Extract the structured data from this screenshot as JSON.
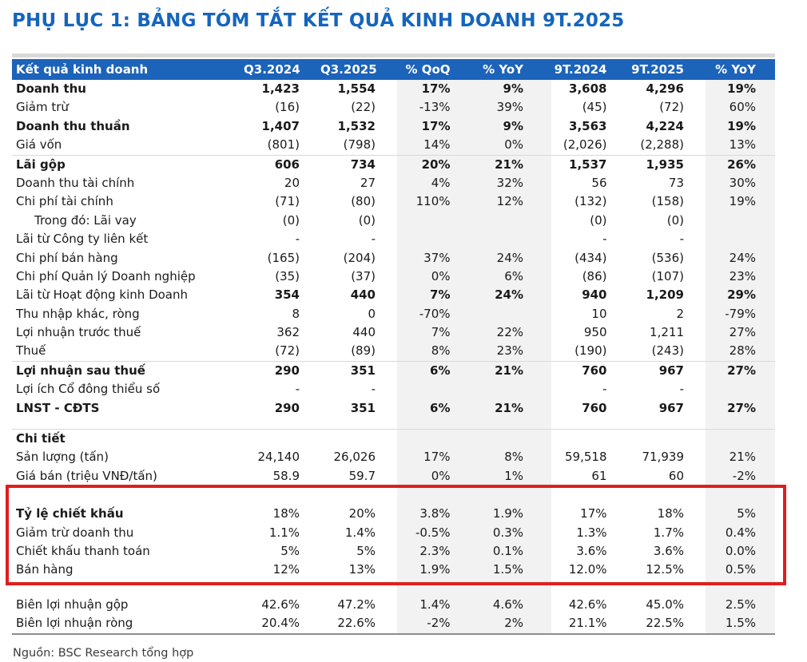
{
  "title": "PHỤ LỤC 1: BẢNG TÓM TẮT KẾT QUẢ KINH DOANH 9T.2025",
  "source_note": "Nguồn: BSC Research tổng hợp",
  "colors": {
    "title": "#1565BD",
    "header_bg": "#1C63BA",
    "header_text": "#FFFFFF",
    "band": "#F2F2F2",
    "highlight_border": "#E01E1E",
    "rule_light": "#D9D9D9",
    "rule_dark": "#8C8C8C",
    "text": "#1A1A1A"
  },
  "table": {
    "header": [
      "Kết quả kinh doanh",
      "Q3.2024",
      "Q3.2025",
      "% QoQ",
      "% YoY",
      "9T.2024",
      "9T.2025",
      "% YoY"
    ],
    "rows": [
      {
        "label": "Doanh thu",
        "values": [
          "1,423",
          "1,554",
          "17%",
          "9%",
          "3,608",
          "4,296",
          "19%"
        ],
        "bold_label": true,
        "bold_values": true
      },
      {
        "label": "Giảm trừ",
        "values": [
          "(16)",
          "(22)",
          "-13%",
          "39%",
          "(45)",
          "(72)",
          "60%"
        ]
      },
      {
        "label": "Doanh thu thuần",
        "values": [
          "1,407",
          "1,532",
          "17%",
          "9%",
          "3,563",
          "4,224",
          "19%"
        ],
        "bold_label": true,
        "bold_values": true
      },
      {
        "label": "Giá vốn",
        "values": [
          "(801)",
          "(798)",
          "14%",
          "0%",
          "(2,026)",
          "(2,288)",
          "13%"
        ],
        "rule": "light"
      },
      {
        "label": "Lãi gộp",
        "values": [
          "606",
          "734",
          "20%",
          "21%",
          "1,537",
          "1,935",
          "26%"
        ],
        "bold_label": true,
        "bold_values": true
      },
      {
        "label": "Doanh thu tài chính",
        "values": [
          "20",
          "27",
          "4%",
          "32%",
          "56",
          "73",
          "30%"
        ]
      },
      {
        "label": "Chi phí tài chính",
        "values": [
          "(71)",
          "(80)",
          "110%",
          "12%",
          "(132)",
          "(158)",
          "19%"
        ]
      },
      {
        "label": "Trong đó: Lãi vay",
        "values": [
          "(0)",
          "(0)",
          "",
          "",
          "(0)",
          "(0)",
          ""
        ],
        "indent": true
      },
      {
        "label": "Lãi từ Công ty liên kết",
        "values": [
          "-",
          "-",
          "",
          "",
          "-",
          "-",
          ""
        ]
      },
      {
        "label": "Chi phí bán hàng",
        "values": [
          "(165)",
          "(204)",
          "37%",
          "24%",
          "(434)",
          "(536)",
          "24%"
        ]
      },
      {
        "label": "Chi phí Quản lý Doanh nghiệp",
        "values": [
          "(35)",
          "(37)",
          "0%",
          "6%",
          "(86)",
          "(107)",
          "23%"
        ]
      },
      {
        "label": "Lãi từ Hoạt động kinh Doanh",
        "values": [
          "354",
          "440",
          "7%",
          "24%",
          "940",
          "1,209",
          "29%"
        ],
        "bold_values": true
      },
      {
        "label": "Thu nhập khác, ròng",
        "values": [
          "8",
          "0",
          "-70%",
          "",
          "10",
          "2",
          "-79%"
        ]
      },
      {
        "label": "Lợi nhuận trước thuế",
        "values": [
          "362",
          "440",
          "7%",
          "22%",
          "950",
          "1,211",
          "27%"
        ]
      },
      {
        "label": "Thuế",
        "values": [
          "(72)",
          "(89)",
          "8%",
          "23%",
          "(190)",
          "(243)",
          "28%"
        ],
        "rule": "light"
      },
      {
        "label": "Lợi nhuận sau thuế",
        "values": [
          "290",
          "351",
          "6%",
          "21%",
          "760",
          "967",
          "27%"
        ],
        "bold_label": true,
        "bold_values": true
      },
      {
        "label": "Lợi ích Cổ đông thiểu số",
        "values": [
          "-",
          "-",
          "",
          "",
          "-",
          "-",
          ""
        ]
      },
      {
        "label": "LNST - CĐTS",
        "values": [
          "290",
          "351",
          "6%",
          "21%",
          "760",
          "967",
          "27%"
        ],
        "bold_label": true,
        "bold_values": true
      },
      {
        "type": "spacer",
        "size": 14,
        "rule": "light"
      },
      {
        "label": "Chi tiết",
        "values": [
          "",
          "",
          "",
          "",
          "",
          "",
          ""
        ],
        "bold_label": true
      },
      {
        "label": "Sản lượng (tấn)",
        "values": [
          "24,140",
          "26,026",
          "17%",
          "8%",
          "59,518",
          "71,939",
          "21%"
        ]
      },
      {
        "label": "Giá bán (triệu VNĐ/tấn)",
        "values": [
          "58.9",
          "59.7",
          "0%",
          "1%",
          "61",
          "60",
          "-2%"
        ]
      },
      {
        "type": "spacer",
        "size": 24
      },
      {
        "label": "Tỷ lệ chiết khấu",
        "values": [
          "18%",
          "20%",
          "3.8%",
          "1.9%",
          "17%",
          "18%",
          "5%"
        ],
        "bold_label": true
      },
      {
        "label": "Giảm trừ doanh thu",
        "values": [
          "1.1%",
          "1.4%",
          "-0.5%",
          "0.3%",
          "1.3%",
          "1.7%",
          "0.4%"
        ]
      },
      {
        "label": "Chiết khấu thanh toán",
        "values": [
          "5%",
          "5%",
          "2.3%",
          "0.1%",
          "3.6%",
          "3.6%",
          "0.0%"
        ]
      },
      {
        "label": "Bán hàng",
        "values": [
          "12%",
          "13%",
          "1.9%",
          "1.5%",
          "12.0%",
          "12.5%",
          "0.5%"
        ]
      },
      {
        "type": "spacer",
        "size": 20
      },
      {
        "label": "Biên lợi nhuận gộp",
        "values": [
          "42.6%",
          "47.2%",
          "1.4%",
          "4.6%",
          "42.6%",
          "45.0%",
          "2.5%"
        ]
      },
      {
        "label": "Biên lợi nhuận ròng",
        "values": [
          "20.4%",
          "22.6%",
          "-2%",
          "2%",
          "21.1%",
          "22.5%",
          "1.5%"
        ],
        "rule": "dark"
      }
    ]
  }
}
